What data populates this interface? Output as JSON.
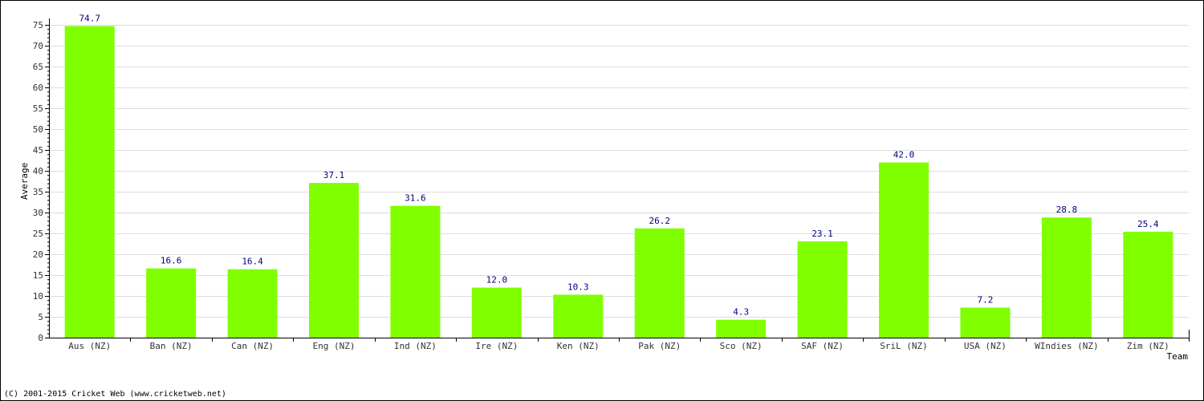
{
  "chart_data": {
    "type": "bar",
    "categories": [
      "Aus (NZ)",
      "Ban (NZ)",
      "Can (NZ)",
      "Eng (NZ)",
      "Ind (NZ)",
      "Ire (NZ)",
      "Ken (NZ)",
      "Pak (NZ)",
      "Sco (NZ)",
      "SAF (NZ)",
      "SriL (NZ)",
      "USA (NZ)",
      "WIndies (NZ)",
      "Zim (NZ)"
    ],
    "values": [
      74.7,
      16.6,
      16.4,
      37.1,
      31.6,
      12.0,
      10.3,
      26.2,
      4.3,
      23.1,
      42.0,
      7.2,
      28.8,
      25.4
    ],
    "data_labels": [
      "74.7",
      "16.6",
      "16.4",
      "37.1",
      "31.6",
      "12.0",
      "10.3",
      "26.2",
      "4.3",
      "23.1",
      "42.0",
      "7.2",
      "28.8",
      "25.4"
    ],
    "xlabel": "Team",
    "ylabel": "Average",
    "ylim": [
      0,
      75
    ],
    "y_ticks": [
      0,
      5,
      10,
      15,
      20,
      25,
      30,
      35,
      40,
      45,
      50,
      55,
      60,
      65,
      70,
      75
    ],
    "grid": true,
    "legend": "none",
    "bar_color": "#80ff00",
    "label_color": "#000080",
    "grid_color": "#dddddd"
  },
  "footer": {
    "text": "(C) 2001-2015 Cricket Web (www.cricketweb.net)"
  }
}
